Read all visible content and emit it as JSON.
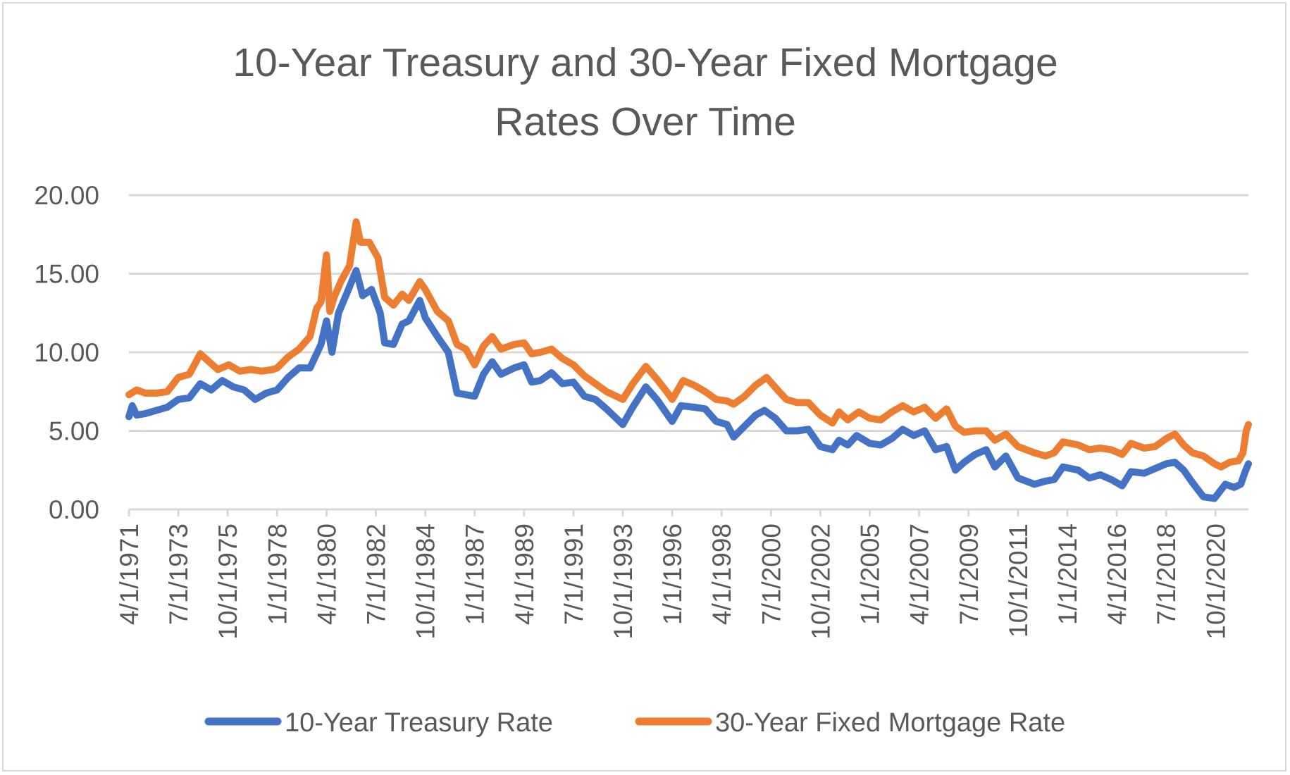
{
  "chart_data": {
    "type": "line",
    "title_lines": [
      "10-Year Treasury and 30-Year Fixed Mortgage",
      "Rates Over Time"
    ],
    "ylim": [
      0,
      20
    ],
    "yticks": [
      "0.00",
      "5.00",
      "10.00",
      "15.00",
      "20.00"
    ],
    "ytick_values": [
      0,
      5,
      10,
      15,
      20
    ],
    "xlim": [
      1971.25,
      2022.25
    ],
    "xtick_labels": [
      "4/1/1971",
      "7/1/1973",
      "10/1/1975",
      "1/1/1978",
      "4/1/1980",
      "7/1/1982",
      "10/1/1984",
      "1/1/1987",
      "4/1/1989",
      "7/1/1991",
      "10/1/1993",
      "1/1/1996",
      "4/1/1998",
      "7/1/2000",
      "10/1/2002",
      "1/1/2005",
      "4/1/2007",
      "7/1/2009",
      "10/1/2011",
      "1/1/2014",
      "4/1/2016",
      "7/1/2018",
      "10/1/2020"
    ],
    "xtick_values": [
      1971.25,
      1973.5,
      1975.75,
      1978.0,
      1980.25,
      1982.5,
      1984.75,
      1987.0,
      1989.25,
      1991.5,
      1993.75,
      1996.0,
      1998.25,
      2000.5,
      2002.75,
      2005.0,
      2007.25,
      2009.5,
      2011.75,
      2014.0,
      2016.25,
      2018.5,
      2020.75
    ],
    "grid": true,
    "legend_position": "bottom",
    "series": [
      {
        "name": "10-Year Treasury Rate",
        "color": "#4472c4",
        "points": [
          [
            1971.25,
            5.9
          ],
          [
            1971.4,
            6.6
          ],
          [
            1971.6,
            6.0
          ],
          [
            1972.0,
            6.1
          ],
          [
            1972.5,
            6.3
          ],
          [
            1973.0,
            6.5
          ],
          [
            1973.5,
            7.0
          ],
          [
            1974.0,
            7.1
          ],
          [
            1974.5,
            8.0
          ],
          [
            1975.0,
            7.6
          ],
          [
            1975.5,
            8.2
          ],
          [
            1976.0,
            7.8
          ],
          [
            1976.5,
            7.6
          ],
          [
            1977.0,
            7.0
          ],
          [
            1977.5,
            7.4
          ],
          [
            1978.0,
            7.6
          ],
          [
            1978.5,
            8.4
          ],
          [
            1979.0,
            9.0
          ],
          [
            1979.5,
            9.0
          ],
          [
            1980.0,
            10.5
          ],
          [
            1980.25,
            12.0
          ],
          [
            1980.5,
            10.0
          ],
          [
            1980.8,
            12.5
          ],
          [
            1981.25,
            14.0
          ],
          [
            1981.6,
            15.2
          ],
          [
            1981.9,
            13.6
          ],
          [
            1982.3,
            14.0
          ],
          [
            1982.7,
            12.5
          ],
          [
            1982.9,
            10.6
          ],
          [
            1983.3,
            10.5
          ],
          [
            1983.7,
            11.8
          ],
          [
            1984.0,
            12.0
          ],
          [
            1984.5,
            13.3
          ],
          [
            1984.75,
            12.2
          ],
          [
            1985.3,
            11.0
          ],
          [
            1985.8,
            10.0
          ],
          [
            1986.2,
            7.4
          ],
          [
            1986.6,
            7.3
          ],
          [
            1987.0,
            7.2
          ],
          [
            1987.4,
            8.6
          ],
          [
            1987.8,
            9.4
          ],
          [
            1988.2,
            8.6
          ],
          [
            1988.8,
            9.0
          ],
          [
            1989.25,
            9.2
          ],
          [
            1989.6,
            8.1
          ],
          [
            1990.0,
            8.2
          ],
          [
            1990.5,
            8.7
          ],
          [
            1991.0,
            8.0
          ],
          [
            1991.5,
            8.1
          ],
          [
            1992.0,
            7.2
          ],
          [
            1992.5,
            7.0
          ],
          [
            1993.0,
            6.4
          ],
          [
            1993.75,
            5.4
          ],
          [
            1994.2,
            6.5
          ],
          [
            1994.8,
            7.8
          ],
          [
            1995.3,
            7.0
          ],
          [
            1995.8,
            6.0
          ],
          [
            1996.0,
            5.6
          ],
          [
            1996.4,
            6.6
          ],
          [
            1997.0,
            6.5
          ],
          [
            1997.5,
            6.4
          ],
          [
            1998.0,
            5.6
          ],
          [
            1998.5,
            5.4
          ],
          [
            1998.8,
            4.6
          ],
          [
            1999.3,
            5.3
          ],
          [
            1999.8,
            6.0
          ],
          [
            2000.2,
            6.3
          ],
          [
            2000.7,
            5.8
          ],
          [
            2001.2,
            5.0
          ],
          [
            2001.7,
            5.0
          ],
          [
            2002.2,
            5.1
          ],
          [
            2002.75,
            4.0
          ],
          [
            2003.3,
            3.8
          ],
          [
            2003.6,
            4.4
          ],
          [
            2004.0,
            4.1
          ],
          [
            2004.4,
            4.7
          ],
          [
            2005.0,
            4.2
          ],
          [
            2005.5,
            4.1
          ],
          [
            2006.0,
            4.5
          ],
          [
            2006.5,
            5.1
          ],
          [
            2007.0,
            4.7
          ],
          [
            2007.5,
            5.0
          ],
          [
            2008.0,
            3.8
          ],
          [
            2008.5,
            4.0
          ],
          [
            2008.9,
            2.5
          ],
          [
            2009.3,
            3.0
          ],
          [
            2009.8,
            3.5
          ],
          [
            2010.3,
            3.8
          ],
          [
            2010.7,
            2.7
          ],
          [
            2011.2,
            3.4
          ],
          [
            2011.75,
            2.0
          ],
          [
            2012.5,
            1.6
          ],
          [
            2013.0,
            1.8
          ],
          [
            2013.4,
            1.9
          ],
          [
            2013.8,
            2.7
          ],
          [
            2014.5,
            2.5
          ],
          [
            2015.0,
            2.0
          ],
          [
            2015.5,
            2.2
          ],
          [
            2016.0,
            1.9
          ],
          [
            2016.5,
            1.5
          ],
          [
            2016.9,
            2.4
          ],
          [
            2017.5,
            2.3
          ],
          [
            2018.0,
            2.6
          ],
          [
            2018.5,
            2.9
          ],
          [
            2018.9,
            3.0
          ],
          [
            2019.3,
            2.5
          ],
          [
            2019.7,
            1.7
          ],
          [
            2020.2,
            0.8
          ],
          [
            2020.7,
            0.7
          ],
          [
            2021.2,
            1.6
          ],
          [
            2021.6,
            1.4
          ],
          [
            2021.9,
            1.6
          ],
          [
            2022.1,
            2.4
          ],
          [
            2022.25,
            2.9
          ]
        ]
      },
      {
        "name": "30-Year Fixed Mortgage Rate",
        "color": "#ed7d31",
        "points": [
          [
            1971.25,
            7.3
          ],
          [
            1971.6,
            7.6
          ],
          [
            1972.0,
            7.4
          ],
          [
            1972.5,
            7.4
          ],
          [
            1973.0,
            7.5
          ],
          [
            1973.5,
            8.4
          ],
          [
            1974.0,
            8.6
          ],
          [
            1974.5,
            9.9
          ],
          [
            1974.9,
            9.4
          ],
          [
            1975.3,
            8.9
          ],
          [
            1975.8,
            9.2
          ],
          [
            1976.3,
            8.8
          ],
          [
            1976.8,
            8.9
          ],
          [
            1977.3,
            8.8
          ],
          [
            1977.8,
            8.9
          ],
          [
            1978.0,
            9.0
          ],
          [
            1978.5,
            9.7
          ],
          [
            1979.0,
            10.2
          ],
          [
            1979.5,
            11.0
          ],
          [
            1979.8,
            12.8
          ],
          [
            1980.0,
            13.2
          ],
          [
            1980.25,
            16.2
          ],
          [
            1980.4,
            12.6
          ],
          [
            1980.6,
            13.5
          ],
          [
            1980.9,
            14.5
          ],
          [
            1981.3,
            15.5
          ],
          [
            1981.6,
            18.3
          ],
          [
            1981.8,
            17.0
          ],
          [
            1982.2,
            17.0
          ],
          [
            1982.6,
            16.0
          ],
          [
            1982.9,
            13.5
          ],
          [
            1983.3,
            13.0
          ],
          [
            1983.7,
            13.7
          ],
          [
            1984.0,
            13.3
          ],
          [
            1984.5,
            14.5
          ],
          [
            1984.75,
            14.0
          ],
          [
            1985.3,
            12.6
          ],
          [
            1985.8,
            12.0
          ],
          [
            1986.2,
            10.5
          ],
          [
            1986.6,
            10.2
          ],
          [
            1987.0,
            9.2
          ],
          [
            1987.4,
            10.4
          ],
          [
            1987.8,
            11.0
          ],
          [
            1988.2,
            10.2
          ],
          [
            1988.8,
            10.5
          ],
          [
            1989.25,
            10.6
          ],
          [
            1989.6,
            9.9
          ],
          [
            1990.0,
            10.0
          ],
          [
            1990.5,
            10.2
          ],
          [
            1991.0,
            9.6
          ],
          [
            1991.5,
            9.2
          ],
          [
            1992.0,
            8.5
          ],
          [
            1992.5,
            8.0
          ],
          [
            1993.0,
            7.5
          ],
          [
            1993.75,
            7.0
          ],
          [
            1994.2,
            8.0
          ],
          [
            1994.8,
            9.1
          ],
          [
            1995.3,
            8.3
          ],
          [
            1995.8,
            7.4
          ],
          [
            1996.0,
            7.0
          ],
          [
            1996.5,
            8.2
          ],
          [
            1997.0,
            7.9
          ],
          [
            1997.5,
            7.5
          ],
          [
            1998.0,
            7.0
          ],
          [
            1998.5,
            6.9
          ],
          [
            1998.8,
            6.7
          ],
          [
            1999.3,
            7.2
          ],
          [
            1999.8,
            7.9
          ],
          [
            2000.3,
            8.4
          ],
          [
            2000.8,
            7.6
          ],
          [
            2001.2,
            7.0
          ],
          [
            2001.7,
            6.8
          ],
          [
            2002.2,
            6.8
          ],
          [
            2002.75,
            6.0
          ],
          [
            2003.3,
            5.5
          ],
          [
            2003.6,
            6.2
          ],
          [
            2004.0,
            5.7
          ],
          [
            2004.5,
            6.2
          ],
          [
            2005.0,
            5.8
          ],
          [
            2005.5,
            5.7
          ],
          [
            2006.0,
            6.2
          ],
          [
            2006.5,
            6.6
          ],
          [
            2007.0,
            6.2
          ],
          [
            2007.5,
            6.5
          ],
          [
            2008.0,
            5.8
          ],
          [
            2008.5,
            6.4
          ],
          [
            2008.9,
            5.3
          ],
          [
            2009.3,
            4.9
          ],
          [
            2009.8,
            5.0
          ],
          [
            2010.3,
            5.0
          ],
          [
            2010.7,
            4.4
          ],
          [
            2011.2,
            4.8
          ],
          [
            2011.75,
            4.0
          ],
          [
            2012.5,
            3.6
          ],
          [
            2013.0,
            3.4
          ],
          [
            2013.4,
            3.6
          ],
          [
            2013.8,
            4.3
          ],
          [
            2014.5,
            4.1
          ],
          [
            2015.0,
            3.8
          ],
          [
            2015.5,
            3.9
          ],
          [
            2016.0,
            3.8
          ],
          [
            2016.5,
            3.5
          ],
          [
            2016.9,
            4.2
          ],
          [
            2017.5,
            3.9
          ],
          [
            2018.0,
            4.0
          ],
          [
            2018.5,
            4.5
          ],
          [
            2018.9,
            4.8
          ],
          [
            2019.3,
            4.1
          ],
          [
            2019.7,
            3.6
          ],
          [
            2020.2,
            3.4
          ],
          [
            2020.7,
            2.9
          ],
          [
            2021.0,
            2.7
          ],
          [
            2021.4,
            3.0
          ],
          [
            2021.8,
            3.1
          ],
          [
            2022.0,
            3.6
          ],
          [
            2022.15,
            5.0
          ],
          [
            2022.25,
            5.4
          ]
        ]
      }
    ]
  }
}
